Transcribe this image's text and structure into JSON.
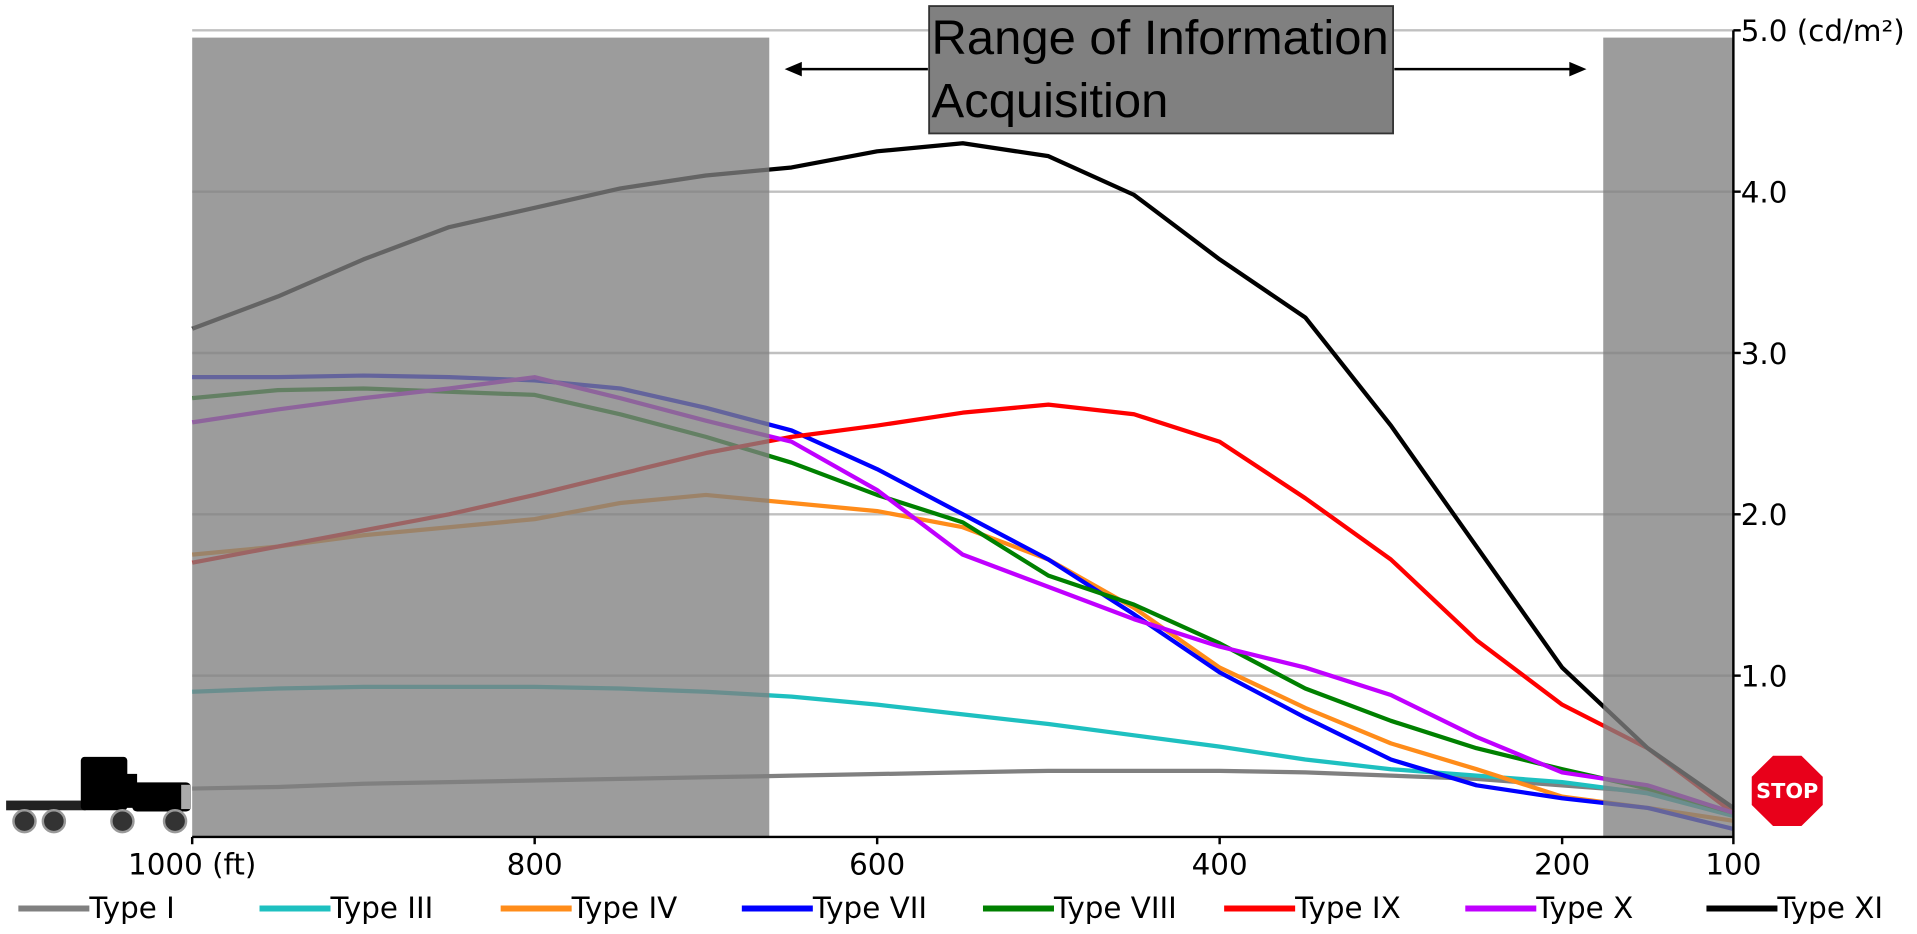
{
  "chart_data": {
    "type": "line",
    "x": [
      1000,
      950,
      900,
      850,
      800,
      750,
      700,
      650,
      600,
      550,
      500,
      450,
      400,
      350,
      300,
      250,
      200,
      150,
      100
    ],
    "series": [
      {
        "name": "Type I",
        "color": "#808080",
        "values": [
          0.3,
          0.31,
          0.33,
          0.34,
          0.35,
          0.36,
          0.37,
          0.38,
          0.39,
          0.4,
          0.41,
          0.41,
          0.41,
          0.4,
          0.38,
          0.36,
          0.32,
          0.28,
          0.15
        ]
      },
      {
        "name": "Type III",
        "color": "#1ec0c0",
        "values": [
          0.9,
          0.92,
          0.93,
          0.93,
          0.93,
          0.92,
          0.9,
          0.87,
          0.82,
          0.76,
          0.7,
          0.63,
          0.56,
          0.48,
          0.42,
          0.38,
          0.34,
          0.27,
          0.13
        ]
      },
      {
        "name": "Type IV",
        "color": "#ff8c1a",
        "values": [
          1.75,
          1.8,
          1.87,
          1.92,
          1.97,
          2.07,
          2.12,
          2.07,
          2.02,
          1.92,
          1.72,
          1.42,
          1.05,
          0.8,
          0.58,
          0.42,
          0.25,
          0.18,
          0.1
        ]
      },
      {
        "name": "Type VII",
        "color": "#0000ff",
        "values": [
          2.85,
          2.85,
          2.86,
          2.85,
          2.83,
          2.78,
          2.66,
          2.52,
          2.28,
          2.0,
          1.72,
          1.38,
          1.02,
          0.74,
          0.48,
          0.32,
          0.24,
          0.18,
          0.05
        ]
      },
      {
        "name": "Type VIII",
        "color": "#008000",
        "values": [
          2.72,
          2.77,
          2.78,
          2.76,
          2.74,
          2.62,
          2.48,
          2.32,
          2.12,
          1.95,
          1.62,
          1.44,
          1.2,
          0.92,
          0.72,
          0.55,
          0.42,
          0.3,
          0.15
        ]
      },
      {
        "name": "Type IX",
        "color": "#ff0000",
        "values": [
          1.7,
          1.8,
          1.9,
          2.0,
          2.12,
          2.25,
          2.38,
          2.48,
          2.55,
          2.63,
          2.68,
          2.62,
          2.45,
          2.1,
          1.72,
          1.22,
          0.82,
          0.55,
          0.15
        ]
      },
      {
        "name": "Type X",
        "color": "#c000ff",
        "values": [
          2.57,
          2.65,
          2.72,
          2.78,
          2.85,
          2.72,
          2.58,
          2.45,
          2.15,
          1.75,
          1.55,
          1.35,
          1.18,
          1.05,
          0.88,
          0.62,
          0.4,
          0.32,
          0.15
        ]
      },
      {
        "name": "Type XI",
        "color": "#000000",
        "values": [
          3.15,
          3.35,
          3.58,
          3.78,
          3.9,
          4.02,
          4.1,
          4.15,
          4.25,
          4.3,
          4.22,
          3.98,
          3.58,
          3.22,
          2.55,
          1.8,
          1.05,
          0.55,
          0.18
        ]
      }
    ],
    "xlim": [
      1000,
      100
    ],
    "xticks": [
      {
        "value": 1000,
        "label": "1000 (ft)"
      },
      800,
      600,
      400,
      200,
      100
    ],
    "ylim": [
      0,
      5
    ],
    "yticks": [
      {
        "value": 1,
        "label": "1.0"
      },
      {
        "value": 2,
        "label": "2.0"
      },
      {
        "value": 3,
        "label": "3.0"
      },
      {
        "value": 4,
        "label": "4.0"
      },
      {
        "value": 5,
        "label": "5.0 (cd/m²)"
      }
    ],
    "grid": true,
    "shaded_regions": [
      [
        1000,
        663
      ],
      [
        176,
        100
      ]
    ],
    "annotation": [
      "Range of Information",
      "Acquisition"
    ],
    "stop_sign": "STOP",
    "legend": "bottom"
  }
}
